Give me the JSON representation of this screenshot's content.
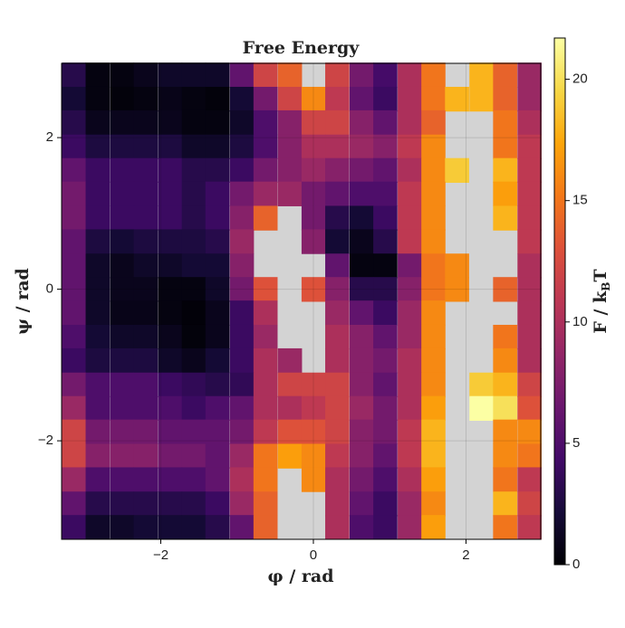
{
  "chart_data": {
    "type": "heatmap",
    "title": "Free Energy",
    "x_label": "φ / rad",
    "y_label": "ψ / rad",
    "colorbar_label": {
      "main": "F / k",
      "sub": "B",
      "end": "T"
    },
    "x": [
      -3.14,
      -2.83,
      -2.51,
      -2.2,
      -1.88,
      -1.57,
      -1.26,
      -0.94,
      -0.63,
      -0.31,
      0,
      0.31,
      0.63,
      0.94,
      1.26,
      1.57,
      1.88,
      2.2,
      2.51,
      2.83
    ],
    "y": [
      2.83,
      2.51,
      2.2,
      1.88,
      1.57,
      1.26,
      0.94,
      0.63,
      0.31,
      0,
      -0.31,
      -0.63,
      -0.94,
      -1.26,
      -1.57,
      -1.88,
      -2.2,
      -2.51,
      -2.83,
      -3.14
    ],
    "z": [
      [
        3,
        0.5,
        0.5,
        1,
        1.5,
        1.5,
        1.5,
        6,
        12,
        14,
        null,
        12,
        7,
        4.5,
        10,
        15,
        null,
        18,
        14,
        9
      ],
      [
        2,
        0.5,
        0.3,
        0.5,
        0.8,
        0.5,
        0.3,
        2,
        7,
        12,
        16,
        11,
        6,
        4,
        10,
        15,
        18,
        18,
        14,
        9
      ],
      [
        3,
        1,
        1,
        1,
        1,
        0.5,
        0.5,
        1.5,
        5,
        8,
        12,
        12,
        8,
        6,
        10,
        14,
        null,
        null,
        15,
        10
      ],
      [
        4,
        2.5,
        2.5,
        2.5,
        2.5,
        1.5,
        1.5,
        2.5,
        5,
        8,
        10,
        10,
        9,
        8,
        11,
        16,
        null,
        null,
        15,
        11
      ],
      [
        6,
        4,
        4,
        4,
        4,
        3,
        3,
        4,
        7,
        8,
        9,
        8,
        7,
        6,
        10,
        16,
        19,
        null,
        18,
        11
      ],
      [
        7,
        4,
        4,
        4,
        4,
        3,
        4,
        7,
        9,
        9,
        7,
        6,
        5,
        5,
        11,
        16,
        null,
        null,
        17,
        11
      ],
      [
        7,
        4,
        4,
        4,
        4,
        3,
        4,
        8,
        14,
        null,
        7,
        3,
        2,
        4,
        11,
        16,
        null,
        null,
        18,
        11
      ],
      [
        6,
        2.5,
        2,
        2.5,
        2.5,
        2.5,
        3,
        9,
        null,
        null,
        8,
        2,
        1,
        3,
        11,
        16,
        null,
        null,
        null,
        11
      ],
      [
        6,
        1.5,
        1,
        1.5,
        1.5,
        2,
        2,
        8,
        null,
        null,
        null,
        6,
        0.5,
        0.5,
        7,
        15,
        16,
        null,
        null,
        10
      ],
      [
        6,
        1.5,
        1,
        1,
        0.5,
        0.5,
        1.5,
        7,
        13,
        null,
        13,
        8,
        3,
        3,
        8,
        15,
        16,
        null,
        14,
        10
      ],
      [
        6,
        1.5,
        0.8,
        0.8,
        0.5,
        0.2,
        1,
        4,
        10,
        null,
        null,
        9,
        6,
        4,
        9,
        16,
        null,
        null,
        null,
        10
      ],
      [
        5,
        2,
        1.5,
        1.5,
        1,
        0.3,
        1,
        4,
        9,
        null,
        null,
        10,
        8,
        6,
        9,
        16,
        null,
        null,
        15,
        10
      ],
      [
        4,
        2.5,
        2.5,
        2.5,
        1.5,
        1,
        2,
        4,
        10,
        9,
        null,
        10,
        8,
        7,
        10,
        16,
        null,
        null,
        16,
        10
      ],
      [
        7,
        5,
        5,
        5,
        4,
        3.5,
        3,
        3.5,
        10,
        12,
        12,
        12,
        8,
        6,
        10,
        16,
        null,
        19,
        18,
        12
      ],
      [
        9,
        5,
        5,
        5,
        5,
        4,
        5,
        6,
        10,
        10,
        11,
        12,
        9,
        7,
        10,
        17,
        null,
        21.7,
        20,
        13
      ],
      [
        12,
        7,
        7,
        7,
        6,
        6,
        6,
        7,
        11,
        13,
        13,
        12,
        8,
        7,
        11,
        18,
        null,
        null,
        16,
        16
      ],
      [
        12,
        8,
        8,
        8,
        7,
        7,
        6,
        9,
        15,
        17,
        16,
        11,
        8,
        6,
        11,
        18,
        null,
        null,
        16,
        15
      ],
      [
        9,
        5,
        5,
        5,
        5,
        5,
        6,
        10,
        15,
        null,
        16,
        10,
        7,
        5,
        10,
        17,
        null,
        null,
        15,
        11
      ],
      [
        6,
        3,
        3,
        3,
        3,
        3,
        4,
        9,
        14,
        null,
        null,
        10,
        6,
        4,
        9,
        16,
        null,
        null,
        18,
        12
      ],
      [
        4,
        1.5,
        1.5,
        2,
        2,
        2,
        3,
        6,
        14,
        null,
        null,
        10,
        5,
        4,
        9,
        17,
        null,
        null,
        15,
        11
      ]
    ],
    "xlim": [
      -3.3,
      2.98
    ],
    "ylim": [
      -3.3,
      2.98
    ],
    "xticks": [
      {
        "value": -2,
        "label": "−2"
      },
      0,
      2
    ],
    "yticks": [
      {
        "value": -2,
        "label": "−2"
      },
      0,
      2
    ],
    "clim": [
      0,
      21.7
    ],
    "cticks": [
      0,
      5,
      10,
      15,
      20
    ],
    "colormap": "inferno",
    "nan_color": "#d3d3d3",
    "grid": true
  }
}
